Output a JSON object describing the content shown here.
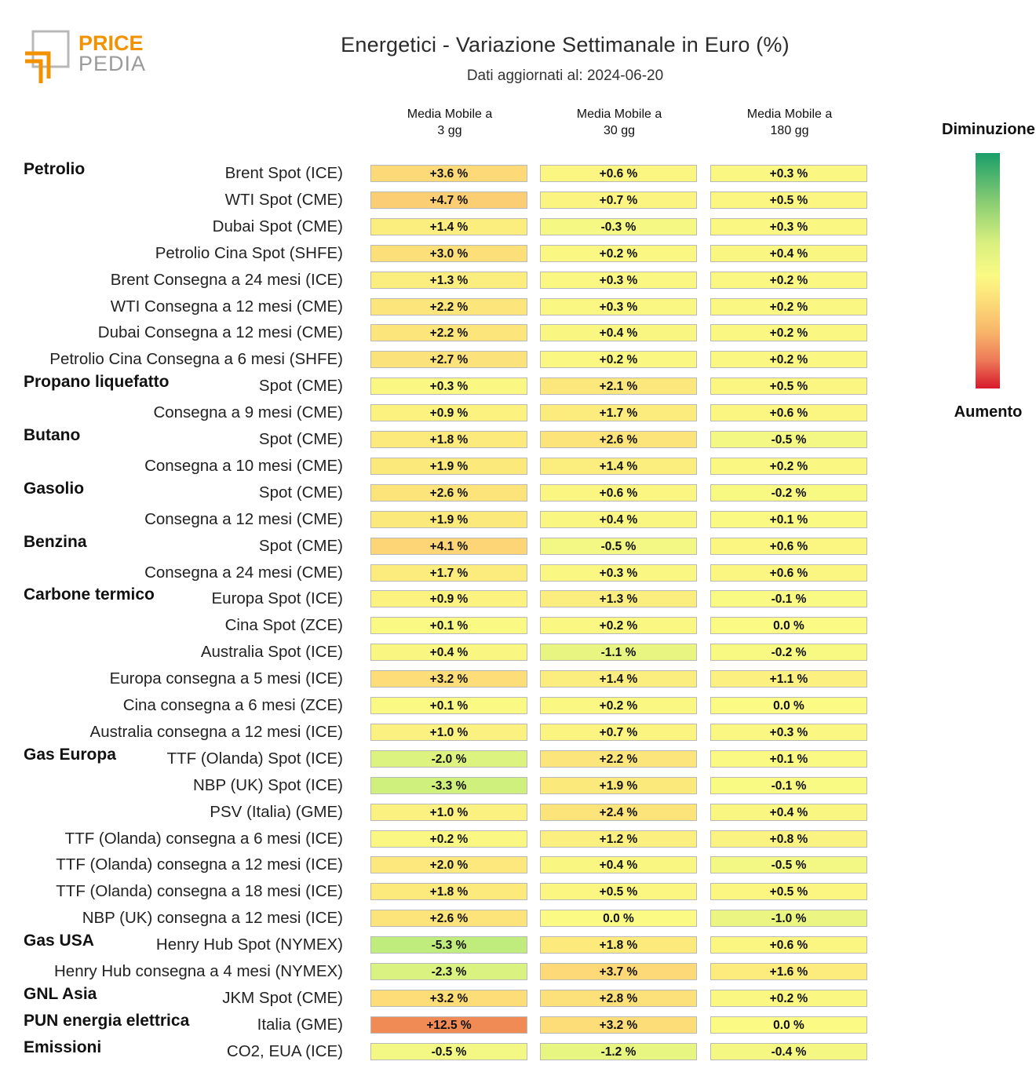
{
  "logo": {
    "text_top": "PRICE",
    "text_bottom": "PEDIA"
  },
  "header": {
    "title": "Energetici - Variazione Settimanale in Euro (%)",
    "subtitle": "Dati aggiornati al: 2024-06-20"
  },
  "legend": {
    "top": "Diminuzione",
    "bottom": "Aumento"
  },
  "chart_data": {
    "type": "heatmap",
    "title": "Energetici - Variazione Settimanale in Euro (%)",
    "subtitle": "Dati aggiornati al: 2024-06-20",
    "columns": [
      "Media Mobile a\n3 gg",
      "Media Mobile a\n30 gg",
      "Media Mobile a\n180 gg"
    ],
    "unit": "%",
    "color_scale": {
      "low": "#1a9e6a",
      "mid": "#fafa84",
      "high": "#d7192c",
      "low_label": "Diminuzione",
      "high_label": "Aumento"
    },
    "groups": [
      {
        "name": "Petrolio",
        "rows": [
          {
            "label": "Brent Spot (ICE)",
            "values": [
              3.6,
              0.6,
              0.3
            ]
          },
          {
            "label": "WTI Spot (CME)",
            "values": [
              4.7,
              0.7,
              0.5
            ]
          },
          {
            "label": "Dubai Spot (CME)",
            "values": [
              1.4,
              -0.3,
              0.3
            ]
          },
          {
            "label": "Petrolio Cina Spot (SHFE)",
            "values": [
              3.0,
              0.2,
              0.4
            ]
          },
          {
            "label": "Brent Consegna a 24 mesi (ICE)",
            "values": [
              1.3,
              0.3,
              0.2
            ]
          },
          {
            "label": "WTI Consegna a 12 mesi (CME)",
            "values": [
              2.2,
              0.3,
              0.2
            ]
          },
          {
            "label": "Dubai Consegna a 12 mesi (CME)",
            "values": [
              2.2,
              0.4,
              0.2
            ]
          },
          {
            "label": "Petrolio Cina Consegna a 6 mesi (SHFE)",
            "values": [
              2.7,
              0.2,
              0.2
            ]
          }
        ]
      },
      {
        "name": "Propano liquefatto",
        "rows": [
          {
            "label": "Spot (CME)",
            "values": [
              0.3,
              2.1,
              0.5
            ]
          },
          {
            "label": "Consegna a 9 mesi (CME)",
            "values": [
              0.9,
              1.7,
              0.6
            ]
          }
        ]
      },
      {
        "name": "Butano",
        "rows": [
          {
            "label": "Spot (CME)",
            "values": [
              1.8,
              2.6,
              -0.5
            ]
          },
          {
            "label": "Consegna a 10 mesi (CME)",
            "values": [
              1.9,
              1.4,
              0.2
            ]
          }
        ]
      },
      {
        "name": "Gasolio",
        "rows": [
          {
            "label": "Spot (CME)",
            "values": [
              2.6,
              0.6,
              -0.2
            ]
          },
          {
            "label": "Consegna a 12 mesi (CME)",
            "values": [
              1.9,
              0.4,
              0.1
            ]
          }
        ]
      },
      {
        "name": "Benzina",
        "rows": [
          {
            "label": "Spot (CME)",
            "values": [
              4.1,
              -0.5,
              0.6
            ]
          },
          {
            "label": "Consegna a 24 mesi (CME)",
            "values": [
              1.7,
              0.3,
              0.6
            ]
          }
        ]
      },
      {
        "name": "Carbone termico",
        "rows": [
          {
            "label": "Europa Spot (ICE)",
            "values": [
              0.9,
              1.3,
              -0.1
            ]
          },
          {
            "label": "Cina Spot (ZCE)",
            "values": [
              0.1,
              0.2,
              0.0
            ]
          },
          {
            "label": "Australia Spot (ICE)",
            "values": [
              0.4,
              -1.1,
              -0.2
            ]
          },
          {
            "label": "Europa consegna a 5 mesi (ICE)",
            "values": [
              3.2,
              1.4,
              1.1
            ]
          },
          {
            "label": "Cina consegna a 6 mesi (ZCE)",
            "values": [
              0.1,
              0.2,
              0.0
            ]
          },
          {
            "label": "Australia consegna a 12 mesi (ICE)",
            "values": [
              1.0,
              0.7,
              0.3
            ]
          }
        ]
      },
      {
        "name": "Gas Europa",
        "rows": [
          {
            "label": "TTF (Olanda) Spot (ICE)",
            "values": [
              -2.0,
              2.2,
              0.1
            ]
          },
          {
            "label": "NBP (UK) Spot (ICE)",
            "values": [
              -3.3,
              1.9,
              -0.1
            ]
          },
          {
            "label": "PSV (Italia) (GME)",
            "values": [
              1.0,
              2.4,
              0.4
            ]
          },
          {
            "label": "TTF (Olanda) consegna a 6 mesi (ICE)",
            "values": [
              0.2,
              1.2,
              0.8
            ]
          },
          {
            "label": "TTF (Olanda) consegna a 12 mesi (ICE)",
            "values": [
              2.0,
              0.4,
              -0.5
            ]
          },
          {
            "label": "TTF (Olanda) consegna a 18 mesi (ICE)",
            "values": [
              1.8,
              0.5,
              0.5
            ]
          },
          {
            "label": "NBP (UK) consegna a 12 mesi (ICE)",
            "values": [
              2.6,
              0.0,
              -1.0
            ]
          }
        ]
      },
      {
        "name": "Gas USA",
        "rows": [
          {
            "label": "Henry Hub Spot (NYMEX)",
            "values": [
              -5.3,
              1.8,
              0.6
            ]
          },
          {
            "label": "Henry Hub consegna a 4 mesi (NYMEX)",
            "values": [
              -2.3,
              3.7,
              1.6
            ]
          }
        ]
      },
      {
        "name": "GNL Asia",
        "rows": [
          {
            "label": "JKM Spot (CME)",
            "values": [
              3.2,
              2.8,
              0.2
            ]
          }
        ]
      },
      {
        "name": "PUN energia elettrica",
        "rows": [
          {
            "label": "Italia (GME)",
            "values": [
              12.5,
              3.2,
              0.0
            ]
          }
        ]
      },
      {
        "name": "Emissioni",
        "rows": [
          {
            "label": "CO2, EUA (ICE)",
            "values": [
              -0.5,
              -1.2,
              -0.4
            ]
          }
        ]
      }
    ]
  }
}
